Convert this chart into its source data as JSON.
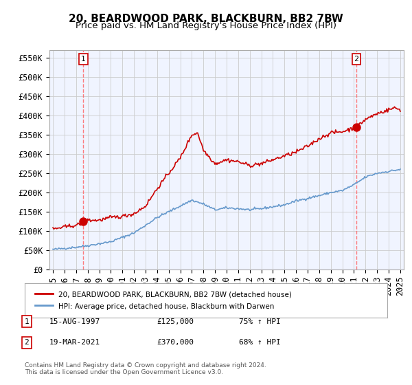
{
  "title": "20, BEARDWOOD PARK, BLACKBURN, BB2 7BW",
  "subtitle": "Price paid vs. HM Land Registry's House Price Index (HPI)",
  "ylabel_ticks": [
    "£0",
    "£50K",
    "£100K",
    "£150K",
    "£200K",
    "£250K",
    "£300K",
    "£350K",
    "£400K",
    "£450K",
    "£500K",
    "£550K"
  ],
  "ytick_values": [
    0,
    50000,
    100000,
    150000,
    200000,
    250000,
    300000,
    350000,
    400000,
    450000,
    500000,
    550000
  ],
  "ylim": [
    0,
    570000
  ],
  "xmin_year": 1995,
  "xmax_year": 2025,
  "sale1_year": 1997.62,
  "sale1_value": 125000,
  "sale1_label": "1",
  "sale2_year": 2021.21,
  "sale2_value": 370000,
  "sale2_label": "2",
  "line_color_red": "#cc0000",
  "line_color_blue": "#6699cc",
  "marker_color_red": "#cc0000",
  "grid_color": "#cccccc",
  "background_color": "#f0f4ff",
  "legend_label_red": "20, BEARDWOOD PARK, BLACKBURN, BB2 7BW (detached house)",
  "legend_label_blue": "HPI: Average price, detached house, Blackburn with Darwen",
  "table_row1": [
    "1",
    "15-AUG-1997",
    "£125,000",
    "75% ↑ HPI"
  ],
  "table_row2": [
    "2",
    "19-MAR-2021",
    "£370,000",
    "68% ↑ HPI"
  ],
  "footnote": "Contains HM Land Registry data © Crown copyright and database right 2024.\nThis data is licensed under the Open Government Licence v3.0.",
  "title_fontsize": 11,
  "subtitle_fontsize": 9.5,
  "tick_fontsize": 8.5,
  "xtick_years": [
    1995,
    1996,
    1997,
    1998,
    1999,
    2000,
    2001,
    2002,
    2003,
    2004,
    2005,
    2006,
    2007,
    2008,
    2009,
    2010,
    2011,
    2012,
    2013,
    2014,
    2015,
    2016,
    2017,
    2018,
    2019,
    2020,
    2021,
    2022,
    2023,
    2024,
    2025
  ]
}
